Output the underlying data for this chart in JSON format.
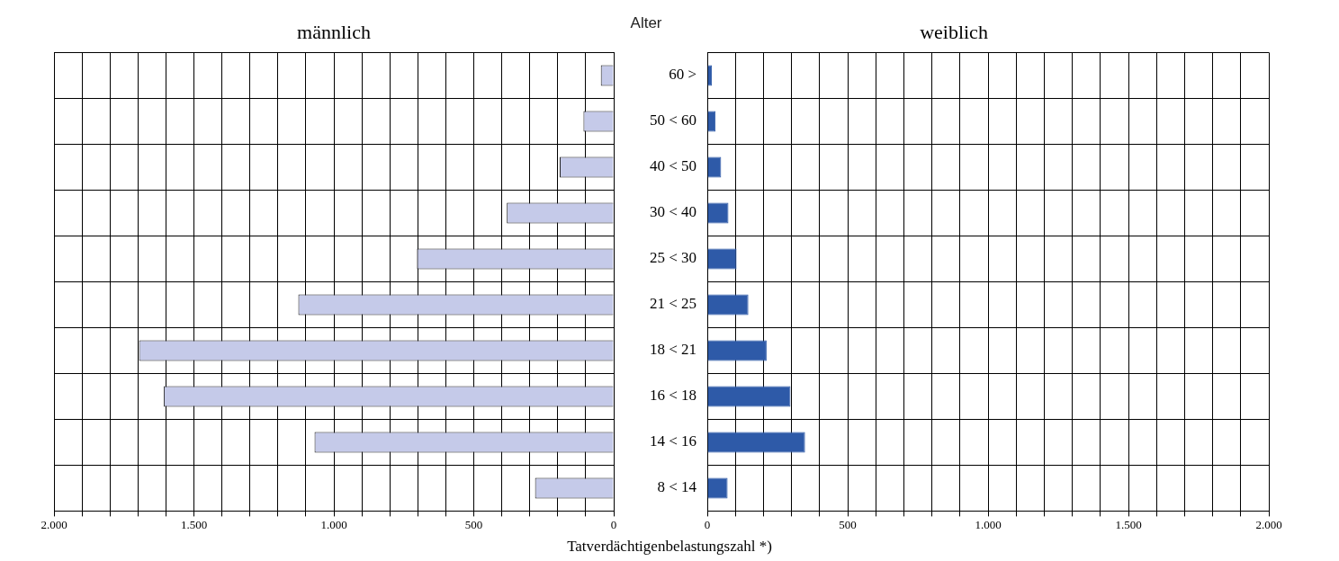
{
  "chart_data": [
    {
      "type": "bar",
      "orientation": "horizontal",
      "title": "männlich",
      "xlabel": "Tatverdächtigenbelastungszahl *)",
      "categories": [
        null,
        null,
        null,
        null,
        null,
        null,
        null,
        null,
        null,
        null
      ],
      "values": [
        46,
        108,
        193,
        382,
        703,
        1127,
        1696,
        1608,
        1069,
        281
      ],
      "color": "#c5cae9",
      "xlim": [
        2000,
        0
      ],
      "xticks": [
        {
          "value": 2000,
          "label": "2.000"
        },
        {
          "value": 1900,
          "label": null
        },
        {
          "value": 1800,
          "label": null
        },
        {
          "value": 1700,
          "label": null
        },
        {
          "value": 1600,
          "label": null
        },
        {
          "value": 1500,
          "label": "1.500"
        },
        {
          "value": 1400,
          "label": null
        },
        {
          "value": 1300,
          "label": null
        },
        {
          "value": 1200,
          "label": null
        },
        {
          "value": 1100,
          "label": null
        },
        {
          "value": 1000,
          "label": "1.000"
        },
        {
          "value": 900,
          "label": null
        },
        {
          "value": 800,
          "label": null
        },
        {
          "value": 700,
          "label": null
        },
        {
          "value": 600,
          "label": null
        },
        {
          "value": 500,
          "label": "500"
        },
        {
          "value": 400,
          "label": null
        },
        {
          "value": 300,
          "label": null
        },
        {
          "value": 200,
          "label": null
        },
        {
          "value": 100,
          "label": null
        },
        {
          "value": 0,
          "label": "0"
        }
      ],
      "grid": true,
      "legend": false,
      "tick_labels": "x"
    },
    {
      "type": "bar",
      "orientation": "horizontal",
      "title": "weiblich",
      "ylabel": "Alter",
      "categories": [
        "60 >",
        "50 < 60",
        "40 < 50",
        "30 < 40",
        "25 < 30",
        "21 < 25",
        "18 < 21",
        "16 < 18",
        "14 < 16",
        "8 < 14"
      ],
      "values": [
        16,
        29,
        49,
        75,
        104,
        146,
        211,
        296,
        348,
        72
      ],
      "color": "#2e5aa8",
      "xlim": [
        0,
        2000
      ],
      "xticks": [
        {
          "value": 0,
          "label": "0"
        },
        {
          "value": 100,
          "label": null
        },
        {
          "value": 200,
          "label": null
        },
        {
          "value": 300,
          "label": null
        },
        {
          "value": 400,
          "label": null
        },
        {
          "value": 500,
          "label": "500"
        },
        {
          "value": 600,
          "label": null
        },
        {
          "value": 700,
          "label": null
        },
        {
          "value": 800,
          "label": null
        },
        {
          "value": 900,
          "label": null
        },
        {
          "value": 1000,
          "label": "1.000"
        },
        {
          "value": 1100,
          "label": null
        },
        {
          "value": 1200,
          "label": null
        },
        {
          "value": 1300,
          "label": null
        },
        {
          "value": 1400,
          "label": null
        },
        {
          "value": 1500,
          "label": "1.500"
        },
        {
          "value": 1600,
          "label": null
        },
        {
          "value": 1700,
          "label": null
        },
        {
          "value": 1800,
          "label": null
        },
        {
          "value": 1900,
          "label": null
        },
        {
          "value": 2000,
          "label": "2.000"
        }
      ],
      "grid": true,
      "legend": false
    }
  ]
}
